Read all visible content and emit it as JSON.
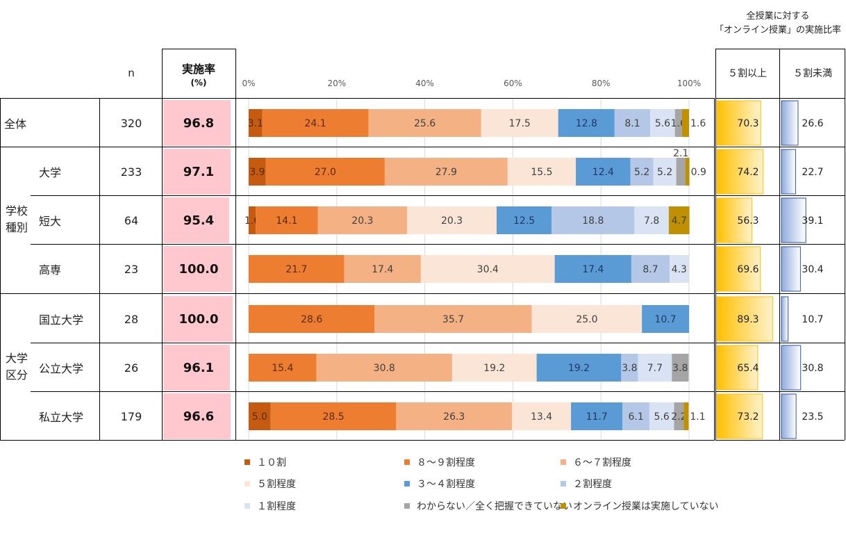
{
  "header": {
    "n_label": "n",
    "rate_label": "実施率",
    "rate_unit": "(%)",
    "right_title_line1": "全授業に対する",
    "right_title_line2": "「オンライン授業」の実施比率",
    "col_5plus": "５割以上",
    "col_5less": "５割未満"
  },
  "groups": {
    "school_type": "学校\n種別",
    "univ_type": "大学\n区分"
  },
  "rows": [
    {
      "label": "全体",
      "n": "320",
      "rate": "96.8",
      "values": [
        3.1,
        24.1,
        25.6,
        17.5,
        12.8,
        8.1,
        5.6,
        1.6,
        1.6
      ],
      "labels": [
        "3.1",
        "24.1",
        "25.6",
        "17.5",
        "12.8",
        "8.1",
        "5.6",
        "1.6",
        "1.6"
      ],
      "plus5": "70.3",
      "less5": "26.6"
    },
    {
      "label": "大学",
      "n": "233",
      "rate": "97.1",
      "values": [
        3.9,
        27.0,
        27.9,
        15.5,
        12.4,
        5.2,
        5.2,
        2.1,
        0.9
      ],
      "labels": [
        "3.9",
        "27.0",
        "27.9",
        "15.5",
        "12.4",
        "5.2",
        "5.2",
        "2.1",
        "0.9"
      ],
      "plus5": "74.2",
      "less5": "22.7"
    },
    {
      "label": "短大",
      "n": "64",
      "rate": "95.4",
      "values": [
        1.6,
        14.1,
        20.3,
        20.3,
        12.5,
        18.8,
        7.8,
        0,
        4.7
      ],
      "labels": [
        "1.6",
        "14.1",
        "20.3",
        "20.3",
        "12.5",
        "18.8",
        "7.8",
        "",
        "4.7"
      ],
      "plus5": "56.3",
      "less5": "39.1"
    },
    {
      "label": "高専",
      "n": "23",
      "rate": "100.0",
      "values": [
        0,
        21.7,
        17.4,
        30.4,
        17.4,
        8.7,
        4.3,
        0,
        0
      ],
      "labels": [
        "",
        "21.7",
        "17.4",
        "30.4",
        "17.4",
        "8.7",
        "4.3",
        "",
        ""
      ],
      "plus5": "69.6",
      "less5": "30.4"
    },
    {
      "label": "国立大学",
      "n": "28",
      "rate": "100.0",
      "values": [
        0,
        28.6,
        35.7,
        25.0,
        10.7,
        0,
        0,
        0,
        0
      ],
      "labels": [
        "",
        "28.6",
        "35.7",
        "25.0",
        "10.7",
        "",
        "",
        "",
        ""
      ],
      "plus5": "89.3",
      "less5": "10.7"
    },
    {
      "label": "公立大学",
      "n": "26",
      "rate": "96.1",
      "values": [
        0,
        15.4,
        30.8,
        19.2,
        19.2,
        3.8,
        7.7,
        3.8,
        0
      ],
      "labels": [
        "",
        "15.4",
        "30.8",
        "19.2",
        "19.2",
        "3.8",
        "7.7",
        "3.8",
        ""
      ],
      "plus5": "65.4",
      "less5": "30.8"
    },
    {
      "label": "私立大学",
      "n": "179",
      "rate": "96.6",
      "values": [
        5.0,
        28.5,
        26.3,
        13.4,
        11.7,
        6.1,
        5.6,
        2.2,
        1.1
      ],
      "labels": [
        "5.0",
        "28.5",
        "26.3",
        "13.4",
        "11.7",
        "6.1",
        "5.6",
        "2.2",
        "1.1"
      ],
      "plus5": "73.2",
      "less5": "23.5"
    }
  ],
  "chart_data": {
    "type": "bar",
    "stacked": true,
    "orientation": "horizontal",
    "categories": [
      "全体",
      "大学",
      "短大",
      "高専",
      "国立大学",
      "公立大学",
      "私立大学"
    ],
    "x_ticks": [
      "0%",
      "20%",
      "40%",
      "60%",
      "80%",
      "100%"
    ],
    "xlim": [
      0,
      100
    ],
    "grid": true,
    "legend_position": "bottom",
    "series": [
      {
        "name": "１０割",
        "color": "#c55a11",
        "values": [
          3.1,
          3.9,
          1.6,
          0,
          0,
          0,
          5.0
        ]
      },
      {
        "name": "８～９割程度",
        "color": "#ed7d31",
        "values": [
          24.1,
          27.0,
          14.1,
          21.7,
          28.6,
          15.4,
          28.5
        ]
      },
      {
        "name": "６～７割程度",
        "color": "#f4b183",
        "values": [
          25.6,
          27.9,
          20.3,
          17.4,
          35.7,
          30.8,
          26.3
        ]
      },
      {
        "name": "５割程度",
        "color": "#fbe5d6",
        "values": [
          17.5,
          15.5,
          20.3,
          30.4,
          25.0,
          19.2,
          13.4
        ]
      },
      {
        "name": "３～４割程度",
        "color": "#5b9bd5",
        "values": [
          12.8,
          12.4,
          12.5,
          17.4,
          10.7,
          19.2,
          11.7
        ]
      },
      {
        "name": "２割程度",
        "color": "#b4c7e7",
        "values": [
          8.1,
          5.2,
          18.8,
          8.7,
          0,
          3.8,
          6.1
        ]
      },
      {
        "name": "１割程度",
        "color": "#dae3f3",
        "values": [
          5.6,
          5.2,
          7.8,
          4.3,
          0,
          7.7,
          5.6
        ]
      },
      {
        "name": "わからない／全く把握できていない",
        "color": "#a5a5a5",
        "values": [
          1.6,
          2.1,
          0,
          0,
          0,
          3.8,
          2.2
        ]
      },
      {
        "name": "オンライン授業は実施していない",
        "color": "#bf9000",
        "values": [
          1.6,
          0.9,
          4.7,
          0,
          0,
          0,
          1.1
        ]
      }
    ],
    "rate": [
      96.8,
      97.1,
      95.4,
      100.0,
      100.0,
      96.1,
      96.6
    ],
    "plus5": [
      70.3,
      74.2,
      56.3,
      69.6,
      89.3,
      65.4,
      73.2
    ],
    "less5": [
      26.6,
      22.7,
      39.1,
      30.4,
      10.7,
      30.8,
      23.5
    ]
  }
}
